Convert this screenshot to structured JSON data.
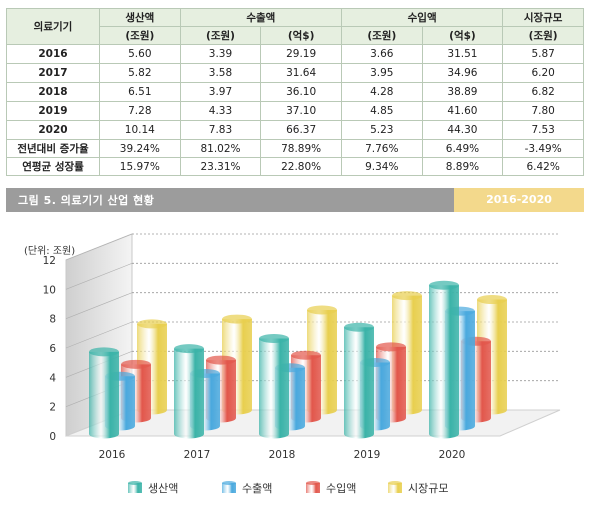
{
  "table": {
    "corner": "의료기기",
    "groups": [
      {
        "label": "생산액",
        "span": 1
      },
      {
        "label": "수출액",
        "span": 2
      },
      {
        "label": "수입액",
        "span": 2
      },
      {
        "label": "시장규모",
        "span": 1
      }
    ],
    "units": [
      "(조원)",
      "(조원)",
      "(억$)",
      "(조원)",
      "(억$)",
      "(조원)"
    ],
    "rows": [
      {
        "label": "2016",
        "values": [
          "5.60",
          "3.39",
          "29.19",
          "3.66",
          "31.51",
          "5.87"
        ]
      },
      {
        "label": "2017",
        "values": [
          "5.82",
          "3.58",
          "31.64",
          "3.95",
          "34.96",
          "6.20"
        ]
      },
      {
        "label": "2018",
        "values": [
          "6.51",
          "3.97",
          "36.10",
          "4.28",
          "38.89",
          "6.82"
        ]
      },
      {
        "label": "2019",
        "values": [
          "7.28",
          "4.33",
          "37.10",
          "4.85",
          "41.60",
          "7.80"
        ]
      },
      {
        "label": "2020",
        "values": [
          "10.14",
          "7.83",
          "66.37",
          "5.23",
          "44.30",
          "7.53"
        ]
      },
      {
        "label": "전년대비 증가율",
        "values": [
          "39.24%",
          "81.02%",
          "78.89%",
          "7.76%",
          "6.49%",
          "-3.49%"
        ]
      },
      {
        "label": "연평균 성장률",
        "values": [
          "15.97%",
          "23.31%",
          "22.80%",
          "9.34%",
          "8.89%",
          "6.42%"
        ]
      }
    ]
  },
  "figure": {
    "title": "그림 5. 의료기기 산업 현황",
    "range": "2016-2020"
  },
  "chart_data": {
    "type": "bar",
    "title": "",
    "unit_label": "(단위: 조원)",
    "categories": [
      "2016",
      "2017",
      "2018",
      "2019",
      "2020"
    ],
    "ylim": [
      0,
      12
    ],
    "yticks": [
      0,
      2,
      4,
      6,
      8,
      10,
      12
    ],
    "grid": true,
    "legend_position": "bottom",
    "series": [
      {
        "name": "생산액",
        "color": "#3bb3a8",
        "values": [
          5.6,
          5.82,
          6.51,
          7.28,
          10.14
        ]
      },
      {
        "name": "수출액",
        "color": "#4aa9de",
        "values": [
          3.39,
          3.58,
          3.97,
          4.33,
          7.83
        ]
      },
      {
        "name": "수입액",
        "color": "#e2574c",
        "values": [
          3.66,
          3.95,
          4.28,
          4.85,
          5.23
        ]
      },
      {
        "name": "시장규모",
        "color": "#e8cf4f",
        "values": [
          5.87,
          6.2,
          6.82,
          7.8,
          7.53
        ]
      }
    ]
  }
}
